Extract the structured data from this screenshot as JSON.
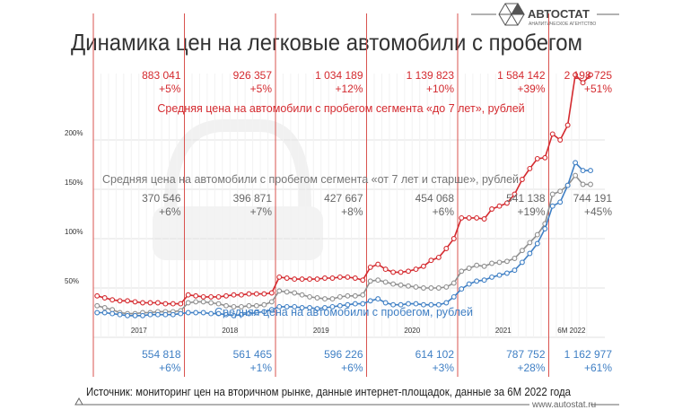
{
  "logo": {
    "name": "АВТОСТАТ",
    "tagline": "АНАЛИТИЧЕСКОЕ АГЕНТСТВО"
  },
  "footer": {
    "source": "Источник: мониторинг цен на вторичном рынке, данные интернет-площадок, данные за 6М 2022 года",
    "url": "www.autostat.ru"
  },
  "chart_data": {
    "type": "line",
    "title": "Динамика цен на легковые автомобили с пробегом",
    "ylim": [
      0,
      270
    ],
    "yticks": [
      {
        "value": 50,
        "label": "50%"
      },
      {
        "value": 100,
        "label": "100%"
      },
      {
        "value": 150,
        "label": "150%"
      },
      {
        "value": 200,
        "label": "200%"
      }
    ],
    "periods": [
      "2017",
      "2018",
      "2019",
      "2020",
      "2021",
      "6М 2022"
    ],
    "months_per_period": [
      12,
      12,
      12,
      12,
      12,
      6
    ],
    "series": [
      {
        "name": "Средняя цена на автомобили с пробегом сегмента «до 7 лет», рублей",
        "color": "#d42a2f",
        "values": [
          42,
          40,
          38,
          37,
          37,
          36,
          35,
          35,
          35,
          34,
          34,
          34,
          43,
          42,
          41,
          41,
          41,
          42,
          43,
          43,
          44,
          44,
          44,
          45,
          61,
          60,
          59,
          59,
          59,
          59,
          60,
          60,
          61,
          61,
          60,
          58,
          71,
          74,
          69,
          66,
          66,
          67,
          69,
          72,
          78,
          81,
          90,
          100,
          121,
          121,
          121,
          120,
          130,
          133,
          136,
          145,
          160,
          171,
          181,
          182,
          206,
          200,
          215,
          266,
          258,
          266
        ],
        "annotations": [
          {
            "value": "883 041",
            "change": "+5%"
          },
          {
            "value": "926 357",
            "change": "+5%"
          },
          {
            "value": "1 034 189",
            "change": "+12%"
          },
          {
            "value": "1 139 823",
            "change": "+10%"
          },
          {
            "value": "1 584 142",
            "change": "+39%"
          },
          {
            "value": "2 198 725",
            "change": "+51%"
          }
        ]
      },
      {
        "name": "Средняя цена на автомобили с пробегом сегмента «от 7 лет и старше», рублей",
        "color": "#8f8f8f",
        "values": [
          32,
          30,
          28,
          25,
          24,
          24,
          25,
          25,
          26,
          26,
          26,
          27,
          35,
          36,
          36,
          35,
          34,
          32,
          31,
          31,
          32,
          32,
          33,
          36,
          47,
          46,
          45,
          43,
          41,
          40,
          39,
          39,
          41,
          42,
          42,
          43,
          57,
          58,
          56,
          54,
          53,
          52,
          51,
          50,
          50,
          50,
          51,
          55,
          67,
          70,
          73,
          72,
          75,
          76,
          77,
          80,
          88,
          96,
          104,
          115,
          145,
          148,
          154,
          164,
          155,
          155
        ],
        "annotations": [
          {
            "value": "370 546",
            "change": "+6%"
          },
          {
            "value": "396 871",
            "change": "+7%"
          },
          {
            "value": "427 667",
            "change": "+8%"
          },
          {
            "value": "454 068",
            "change": "+6%"
          },
          {
            "value": "541 138",
            "change": "+19%"
          },
          {
            "value": "744 191",
            "change": "+45%"
          }
        ]
      },
      {
        "name": "Средняя цена на автомобили с пробегом, рублей",
        "color": "#3f7fc4",
        "values": [
          25,
          25,
          24,
          23,
          22,
          22,
          22,
          23,
          23,
          23,
          23,
          24,
          25,
          25,
          25,
          24,
          24,
          23,
          22,
          23,
          24,
          25,
          26,
          28,
          31,
          31,
          31,
          30,
          30,
          29,
          30,
          31,
          32,
          33,
          34,
          34,
          37,
          39,
          35,
          33,
          33,
          34,
          34,
          33,
          33,
          33,
          35,
          41,
          49,
          54,
          57,
          58,
          61,
          63,
          65,
          68,
          76,
          85,
          95,
          110,
          133,
          137,
          154,
          177,
          169,
          169
        ],
        "annotations": [
          {
            "value": "554 818",
            "change": "+6%"
          },
          {
            "value": "561 465",
            "change": "+1%"
          },
          {
            "value": "596 226",
            "change": "+6%"
          },
          {
            "value": "614 102",
            "change": "+3%"
          },
          {
            "value": "787 752",
            "change": "+28%"
          },
          {
            "value": "1 162 977",
            "change": "+61%"
          }
        ]
      }
    ]
  }
}
